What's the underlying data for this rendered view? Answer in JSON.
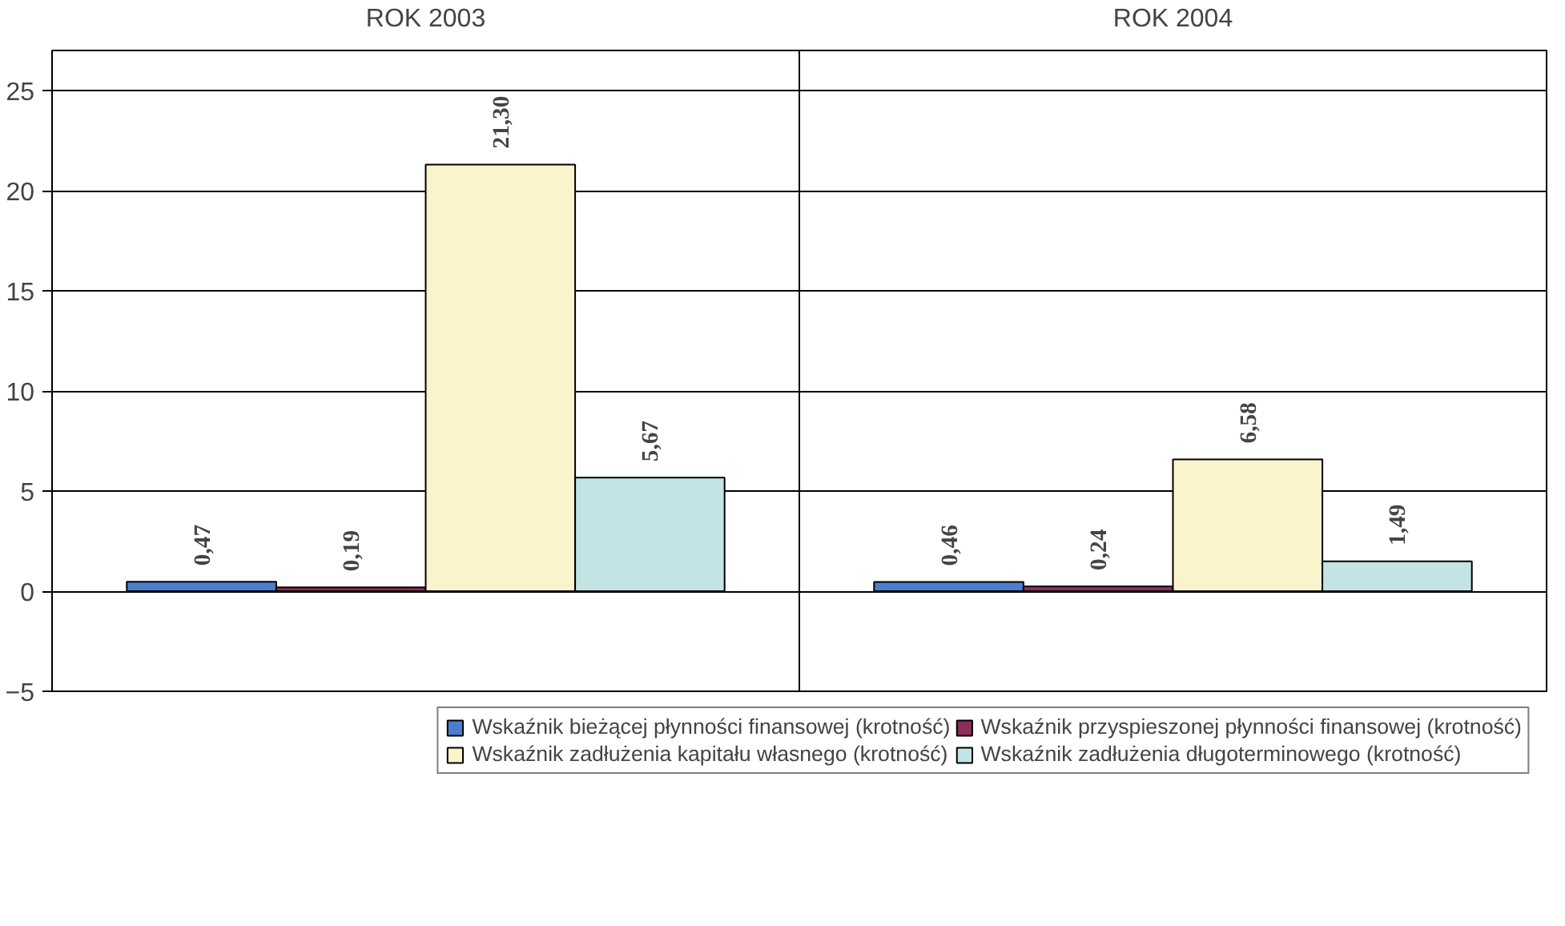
{
  "chart_data": {
    "type": "bar",
    "categories": [
      "ROK 2003",
      "ROK 2004"
    ],
    "series": [
      {
        "name": "Wskaźnik bieżącej płynności finansowej (krotność)",
        "color": "#4a7fcf",
        "values": [
          0.47,
          0.46
        ],
        "value_labels": [
          "0,47",
          "0,46"
        ]
      },
      {
        "name": "Wskaźnik przyspieszonej płynności finansowej (krotność)",
        "color": "#8b2e5a",
        "values": [
          0.19,
          0.24
        ],
        "value_labels": [
          "0,19",
          "0,24"
        ]
      },
      {
        "name": "Wskaźnik zadłużenia kapitału własnego (krotność)",
        "color": "#fbf3cc",
        "values": [
          21.3,
          6.58
        ],
        "value_labels": [
          "21,30",
          "6,58"
        ]
      },
      {
        "name": "Wskaźnik zadłużenia długoterminowego (krotność)",
        "color": "#c2e4e4",
        "values": [
          5.67,
          1.49
        ],
        "value_labels": [
          "5,67",
          "1,49"
        ]
      }
    ],
    "ylim": [
      -5,
      27
    ],
    "yticks": [
      -5,
      0,
      5,
      10,
      15,
      20,
      25
    ],
    "grid": "y",
    "legend": "bottom"
  }
}
